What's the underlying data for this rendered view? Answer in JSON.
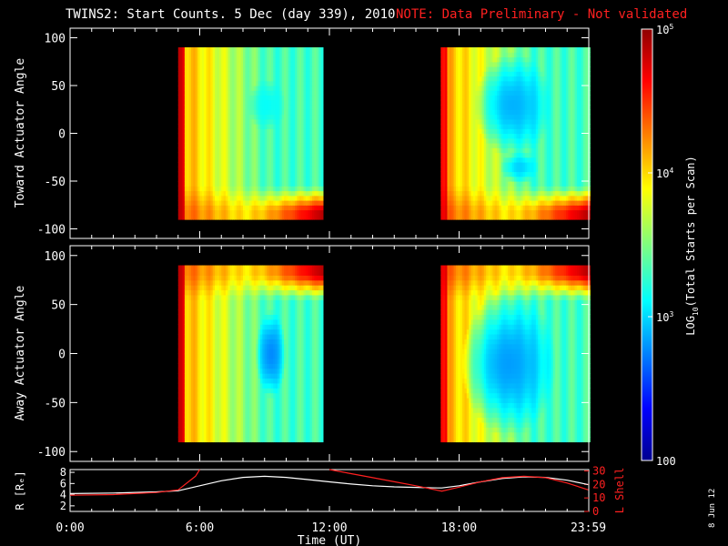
{
  "header": {
    "title": "TWINS2: Start Counts.  5 Dec (day 339), 2010",
    "note": "NOTE: Data Preliminary - Not validated"
  },
  "side_stamp": "8 Jun 12",
  "colors": {
    "background": "#000000",
    "axis": "#ffffff",
    "note": "#ff2020",
    "lshell": "#ff2020",
    "radius": "#ffffff"
  },
  "chart_data": [
    {
      "type": "heatmap",
      "id": "toward",
      "ylabel": "Toward Actuator Angle",
      "ylim": [
        -110,
        110
      ],
      "yticks": [
        100,
        50,
        0,
        -50,
        -100
      ],
      "xlim_hours": [
        0,
        24
      ],
      "coverage_hours": [
        [
          5.0,
          11.7
        ],
        [
          17.15,
          23.99
        ]
      ],
      "angle_range": [
        -90,
        90
      ],
      "dip": [
        {
          "center_h": 9.1,
          "center_deg": 30,
          "span_h": 0.9,
          "span_deg": 55,
          "floor": 0.38
        },
        {
          "center_h": 20.5,
          "center_deg": 30,
          "span_h": 1.8,
          "span_deg": 110,
          "floor": 0.3
        },
        {
          "center_h": 20.8,
          "center_deg": -35,
          "span_h": 0.9,
          "span_deg": 35,
          "floor": 0.33
        }
      ],
      "edge_high": "bottom"
    },
    {
      "type": "heatmap",
      "id": "away",
      "ylabel": "Away Actuator Angle",
      "ylim": [
        -110,
        110
      ],
      "yticks": [
        100,
        50,
        0,
        -50,
        -100
      ],
      "xlim_hours": [
        0,
        24
      ],
      "coverage_hours": [
        [
          5.0,
          11.7
        ],
        [
          17.15,
          23.99
        ]
      ],
      "angle_range": [
        -90,
        90
      ],
      "dip": [
        {
          "center_h": 9.3,
          "center_deg": 0,
          "span_h": 0.7,
          "span_deg": 90,
          "floor": 0.26
        },
        {
          "center_h": 20.3,
          "center_deg": -10,
          "span_h": 2.2,
          "span_deg": 150,
          "floor": 0.28
        }
      ],
      "edge_high": "top"
    },
    {
      "type": "line",
      "id": "orbit",
      "ylabel_left": "R [Rₑ]",
      "ylabel_right": "L Shell",
      "xlabel": "Time (UT)",
      "x_tick_labels": [
        "0:00",
        "6:00",
        "12:00",
        "18:00",
        "23:59"
      ],
      "x_tick_hours": [
        0,
        6,
        12,
        18,
        23.98
      ],
      "left_yticks": [
        2,
        4,
        6,
        8
      ],
      "left_ylim": [
        1,
        8.5
      ],
      "right_yticks": [
        0,
        10,
        20,
        30
      ],
      "right_ylim": [
        0,
        31
      ],
      "series": [
        {
          "name": "R",
          "axis": "left",
          "x": [
            0,
            2,
            4,
            5.0,
            6,
            7,
            8,
            9,
            10,
            11,
            12,
            13,
            14,
            15,
            16,
            17,
            17.2,
            18,
            19,
            20,
            21,
            22,
            23,
            23.98
          ],
          "y": [
            4.2,
            4.3,
            4.5,
            4.7,
            5.6,
            6.5,
            7.1,
            7.3,
            7.1,
            6.7,
            6.3,
            5.9,
            5.6,
            5.4,
            5.3,
            5.2,
            5.2,
            5.6,
            6.3,
            6.9,
            7.2,
            7.1,
            6.6,
            5.8
          ]
        },
        {
          "name": "L",
          "axis": "right",
          "segments": [
            {
              "x": [
                0,
                2,
                4,
                5.0,
                5.8,
                6.0
              ],
              "y": [
                12,
                12.5,
                14,
                16,
                26,
                31
              ]
            },
            {
              "x": [
                12.0,
                13,
                14,
                15,
                16,
                17.2,
                18,
                19,
                20,
                21,
                22,
                23,
                23.98
              ],
              "y": [
                31,
                28,
                25,
                22,
                19,
                15,
                18,
                22,
                25,
                26,
                25,
                21,
                16
              ]
            }
          ]
        }
      ]
    }
  ],
  "colorbar": {
    "label_prefix": "LOG",
    "label_sub": "10",
    "label_suffix": "(Total Starts per Scan)",
    "ticks": [
      {
        "base": "10",
        "exp": "5",
        "frac": 1.0
      },
      {
        "base": "10",
        "exp": "4",
        "frac": 0.6667
      },
      {
        "base": "10",
        "exp": "3",
        "frac": 0.3333
      },
      {
        "base": "100",
        "exp": "",
        "frac": 0.0
      }
    ]
  }
}
